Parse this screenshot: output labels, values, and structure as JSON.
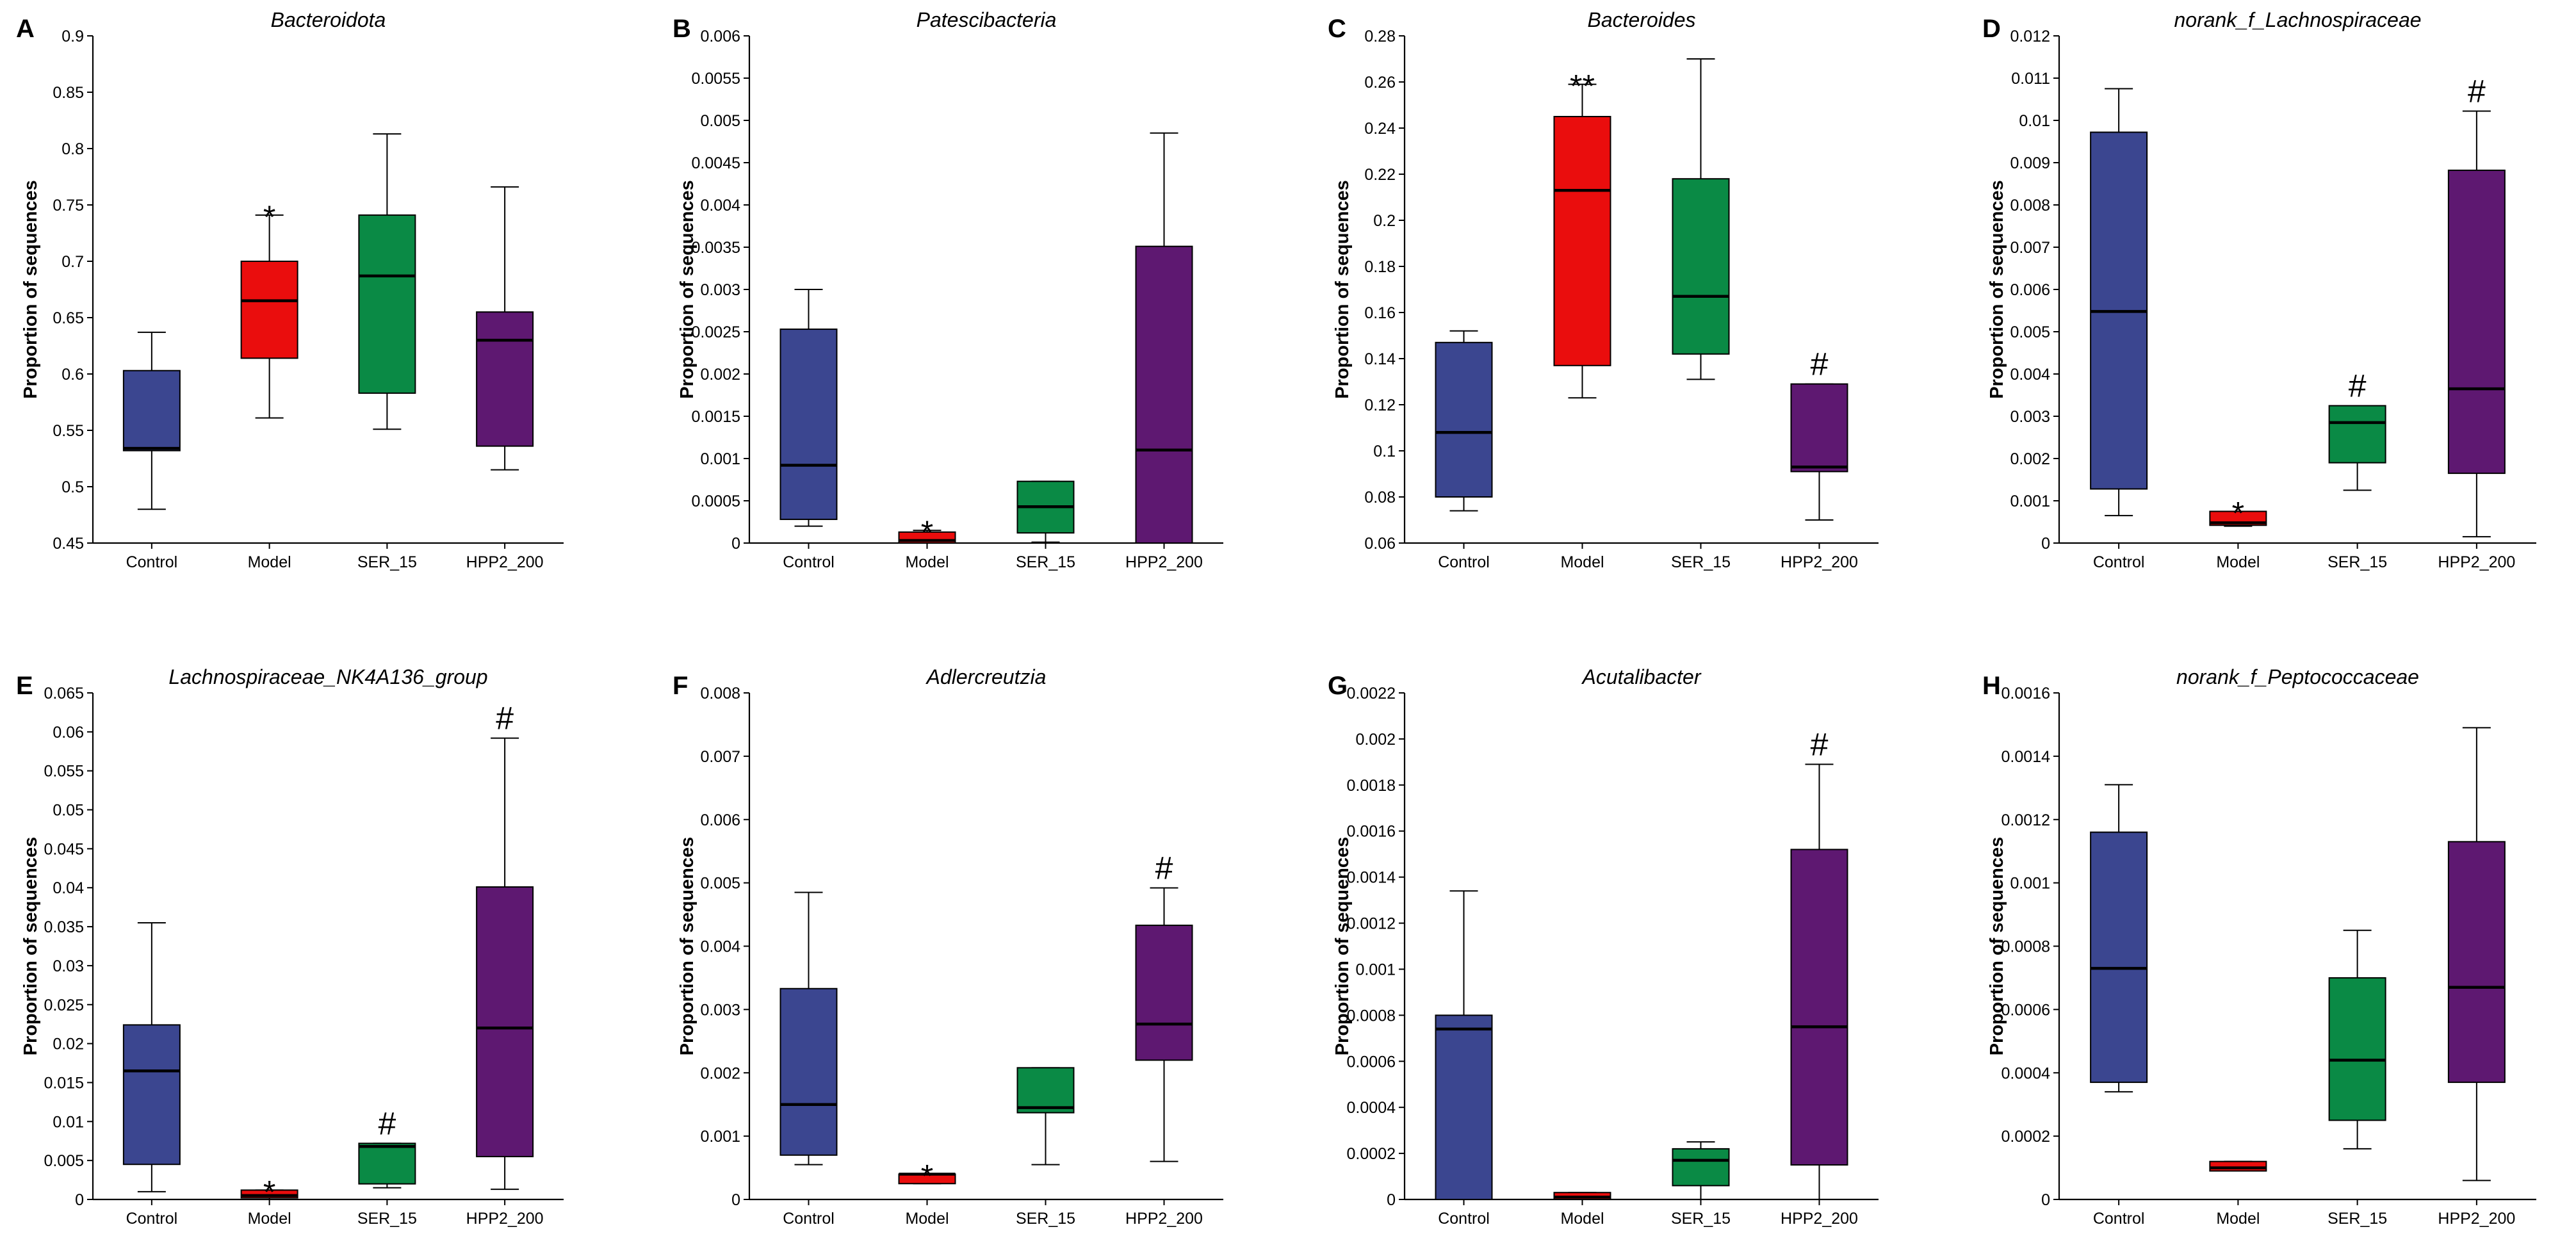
{
  "colors": {
    "Control": "#3b4690",
    "Model": "#ea0d0d",
    "SER_15": "#0a8a45",
    "HPP2_200": "#5e1871"
  },
  "chart_data": [
    {
      "panel": "A",
      "type": "box",
      "title": "Bacteroidota",
      "xlabel": "",
      "ylabel": "Proportion of sequences",
      "categories": [
        "Control",
        "Model",
        "SER_15",
        "HPP2_200"
      ],
      "ylim": [
        0.45,
        0.9
      ],
      "ticks": [
        0.45,
        0.5,
        0.55,
        0.6,
        0.65,
        0.7,
        0.75,
        0.8,
        0.85,
        0.9
      ],
      "tick_labels": [
        "0.45",
        "0.5",
        "0.55",
        "0.6",
        "0.65",
        "0.7",
        "0.75",
        "0.8",
        "0.85",
        "0.9"
      ],
      "boxes": [
        {
          "min": 0.48,
          "q1": 0.532,
          "median": 0.534,
          "q3": 0.603,
          "max": 0.637
        },
        {
          "min": 0.561,
          "q1": 0.614,
          "median": 0.665,
          "q3": 0.7,
          "max": 0.741
        },
        {
          "min": 0.551,
          "q1": 0.583,
          "median": 0.687,
          "q3": 0.741,
          "max": 0.813
        },
        {
          "min": 0.515,
          "q1": 0.536,
          "median": 0.63,
          "q3": 0.655,
          "max": 0.766
        }
      ],
      "significance": [
        "",
        "*",
        "",
        ""
      ]
    },
    {
      "panel": "B",
      "type": "box",
      "title": "Patescibacteria",
      "xlabel": "",
      "ylabel": "Proportion of sequences",
      "categories": [
        "Control",
        "Model",
        "SER_15",
        "HPP2_200"
      ],
      "ylim": [
        0,
        0.006
      ],
      "ticks": [
        0,
        0.0005,
        0.001,
        0.0015,
        0.002,
        0.0025,
        0.003,
        0.0035,
        0.004,
        0.0045,
        0.005,
        0.0055,
        0.006
      ],
      "tick_labels": [
        "0",
        "0.0005",
        "0.001",
        "0.0015",
        "0.002",
        "0.0025",
        "0.003",
        "0.0035",
        "0.004",
        "0.0045",
        "0.005",
        "0.0055",
        "0.006"
      ],
      "boxes": [
        {
          "min": 0.0002,
          "q1": 0.00028,
          "median": 0.00092,
          "q3": 0.00253,
          "max": 0.003
        },
        {
          "min": 0.0,
          "q1": 0.0,
          "median": 3e-05,
          "q3": 0.00013,
          "max": 0.00015
        },
        {
          "min": 1e-05,
          "q1": 0.00012,
          "median": 0.00043,
          "q3": 0.00073,
          "max": 0.00073
        },
        {
          "min": 0.0,
          "q1": 0.0,
          "median": 0.0011,
          "q3": 0.00351,
          "max": 0.00485
        }
      ],
      "significance": [
        "",
        "*",
        "",
        ""
      ]
    },
    {
      "panel": "C",
      "type": "box",
      "title": "Bacteroides",
      "xlabel": "",
      "ylabel": "Proportion of sequences",
      "categories": [
        "Control",
        "Model",
        "SER_15",
        "HPP2_200"
      ],
      "ylim": [
        0.06,
        0.28
      ],
      "ticks": [
        0.06,
        0.08,
        0.1,
        0.12,
        0.14,
        0.16,
        0.18,
        0.2,
        0.22,
        0.24,
        0.26,
        0.28
      ],
      "tick_labels": [
        "0.06",
        "0.08",
        "0.1",
        "0.12",
        "0.14",
        "0.16",
        "0.18",
        "0.2",
        "0.22",
        "0.24",
        "0.26",
        "0.28"
      ],
      "boxes": [
        {
          "min": 0.074,
          "q1": 0.08,
          "median": 0.108,
          "q3": 0.147,
          "max": 0.152
        },
        {
          "min": 0.123,
          "q1": 0.137,
          "median": 0.213,
          "q3": 0.245,
          "max": 0.259
        },
        {
          "min": 0.131,
          "q1": 0.142,
          "median": 0.167,
          "q3": 0.218,
          "max": 0.27
        },
        {
          "min": 0.07,
          "q1": 0.091,
          "median": 0.093,
          "q3": 0.129,
          "max": 0.129
        }
      ],
      "significance": [
        "",
        "**",
        "",
        "#"
      ]
    },
    {
      "panel": "D",
      "type": "box",
      "title": "norank_f_Lachnospiraceae",
      "xlabel": "",
      "ylabel": "Proportion of sequences",
      "categories": [
        "Control",
        "Model",
        "SER_15",
        "HPP2_200"
      ],
      "ylim": [
        0,
        0.012
      ],
      "ticks": [
        0,
        0.001,
        0.002,
        0.003,
        0.004,
        0.005,
        0.006,
        0.007,
        0.008,
        0.009,
        0.01,
        0.011,
        0.012
      ],
      "tick_labels": [
        "0",
        "0.001",
        "0.002",
        "0.003",
        "0.004",
        "0.005",
        "0.006",
        "0.007",
        "0.008",
        "0.009",
        "0.01",
        "0.011",
        "0.012"
      ],
      "boxes": [
        {
          "min": 0.00065,
          "q1": 0.00128,
          "median": 0.00548,
          "q3": 0.00972,
          "max": 0.01075
        },
        {
          "min": 0.0004,
          "q1": 0.00042,
          "median": 0.00048,
          "q3": 0.00075,
          "max": 0.00075
        },
        {
          "min": 0.00125,
          "q1": 0.0019,
          "median": 0.00285,
          "q3": 0.00325,
          "max": 0.00325
        },
        {
          "min": 0.00015,
          "q1": 0.00165,
          "median": 0.00365,
          "q3": 0.00882,
          "max": 0.01022
        }
      ],
      "significance": [
        "",
        "*",
        "#",
        "#"
      ]
    },
    {
      "panel": "E",
      "type": "box",
      "title": "Lachnospiraceae_NK4A136_group",
      "xlabel": "",
      "ylabel": "Proportion of sequences",
      "categories": [
        "Control",
        "Model",
        "SER_15",
        "HPP2_200"
      ],
      "ylim": [
        0,
        0.065
      ],
      "ticks": [
        0,
        0.005,
        0.01,
        0.015,
        0.02,
        0.025,
        0.03,
        0.035,
        0.04,
        0.045,
        0.05,
        0.055,
        0.06,
        0.065
      ],
      "tick_labels": [
        "0",
        "0.005",
        "0.01",
        "0.015",
        "0.02",
        "0.025",
        "0.03",
        "0.035",
        "0.04",
        "0.045",
        "0.05",
        "0.055",
        "0.06",
        "0.065"
      ],
      "boxes": [
        {
          "min": 0.001,
          "q1": 0.0045,
          "median": 0.0165,
          "q3": 0.0224,
          "max": 0.0355
        },
        {
          "min": 0.0,
          "q1": 0.0002,
          "median": 0.0005,
          "q3": 0.0012,
          "max": 0.0012
        },
        {
          "min": 0.0015,
          "q1": 0.002,
          "median": 0.0068,
          "q3": 0.0072,
          "max": 0.0072
        },
        {
          "min": 0.0013,
          "q1": 0.0055,
          "median": 0.022,
          "q3": 0.0401,
          "max": 0.0592
        }
      ],
      "significance": [
        "",
        "*",
        "#",
        "#"
      ]
    },
    {
      "panel": "F",
      "type": "box",
      "title": "Adlercreutzia",
      "xlabel": "",
      "ylabel": "Proportion of sequences",
      "categories": [
        "Control",
        "Model",
        "SER_15",
        "HPP2_200"
      ],
      "ylim": [
        0,
        0.008
      ],
      "ticks": [
        0,
        0.001,
        0.002,
        0.003,
        0.004,
        0.005,
        0.006,
        0.007,
        0.008
      ],
      "tick_labels": [
        "0",
        "0.001",
        "0.002",
        "0.003",
        "0.004",
        "0.005",
        "0.006",
        "0.007",
        "0.008"
      ],
      "boxes": [
        {
          "min": 0.00055,
          "q1": 0.0007,
          "median": 0.0015,
          "q3": 0.00333,
          "max": 0.00485
        },
        {
          "min": 0.00025,
          "q1": 0.00025,
          "median": 0.0004,
          "q3": 0.0004,
          "max": 0.0004
        },
        {
          "min": 0.00055,
          "q1": 0.00137,
          "median": 0.00145,
          "q3": 0.00208,
          "max": 0.00208
        },
        {
          "min": 0.0006,
          "q1": 0.0022,
          "median": 0.00277,
          "q3": 0.00433,
          "max": 0.00492
        }
      ],
      "significance": [
        "",
        "*",
        "",
        "#"
      ]
    },
    {
      "panel": "G",
      "type": "box",
      "title": "Acutalibacter",
      "xlabel": "",
      "ylabel": "Proportion of sequences",
      "categories": [
        "Control",
        "Model",
        "SER_15",
        "HPP2_200"
      ],
      "ylim": [
        0,
        0.0022
      ],
      "ticks": [
        0,
        0.0002,
        0.0004,
        0.0006,
        0.0008,
        0.001,
        0.0012,
        0.0014,
        0.0016,
        0.0018,
        0.002,
        0.0022
      ],
      "tick_labels": [
        "0",
        "0.0002",
        "0.0004",
        "0.0006",
        "0.0008",
        "0.001",
        "0.0012",
        "0.0014",
        "0.0016",
        "0.0018",
        "0.002",
        "0.0022"
      ],
      "boxes": [
        {
          "min": 0.0,
          "q1": 0.0,
          "median": 0.00074,
          "q3": 0.0008,
          "max": 0.00134
        },
        {
          "min": 0.0,
          "q1": 0.0,
          "median": 1e-05,
          "q3": 3e-05,
          "max": 3e-05
        },
        {
          "min": 0.0,
          "q1": 6e-05,
          "median": 0.00017,
          "q3": 0.00022,
          "max": 0.00025
        },
        {
          "min": 0.0,
          "q1": 0.00015,
          "median": 0.00075,
          "q3": 0.00152,
          "max": 0.00189
        }
      ],
      "significance": [
        "",
        "",
        "",
        "#"
      ]
    },
    {
      "panel": "H",
      "type": "box",
      "title": "norank_f_Peptococcaceae",
      "xlabel": "",
      "ylabel": "Proportion of sequences",
      "categories": [
        "Control",
        "Model",
        "SER_15",
        "HPP2_200"
      ],
      "ylim": [
        0,
        0.0016
      ],
      "ticks": [
        0,
        0.0002,
        0.0004,
        0.0006,
        0.0008,
        0.001,
        0.0012,
        0.0014,
        0.0016
      ],
      "tick_labels": [
        "0",
        "0.0002",
        "0.0004",
        "0.0006",
        "0.0008",
        "0.001",
        "0.0012",
        "0.0014",
        "0.0016"
      ],
      "boxes": [
        {
          "min": 0.00034,
          "q1": 0.00037,
          "median": 0.00073,
          "q3": 0.00116,
          "max": 0.00131
        },
        {
          "min": 9e-05,
          "q1": 9e-05,
          "median": 0.0001,
          "q3": 0.00012,
          "max": 0.00012
        },
        {
          "min": 0.00016,
          "q1": 0.00025,
          "median": 0.00044,
          "q3": 0.0007,
          "max": 0.00085
        },
        {
          "min": 6e-05,
          "q1": 0.00037,
          "median": 0.00067,
          "q3": 0.00113,
          "max": 0.00149
        }
      ],
      "significance": [
        "",
        "",
        "",
        ""
      ]
    }
  ]
}
